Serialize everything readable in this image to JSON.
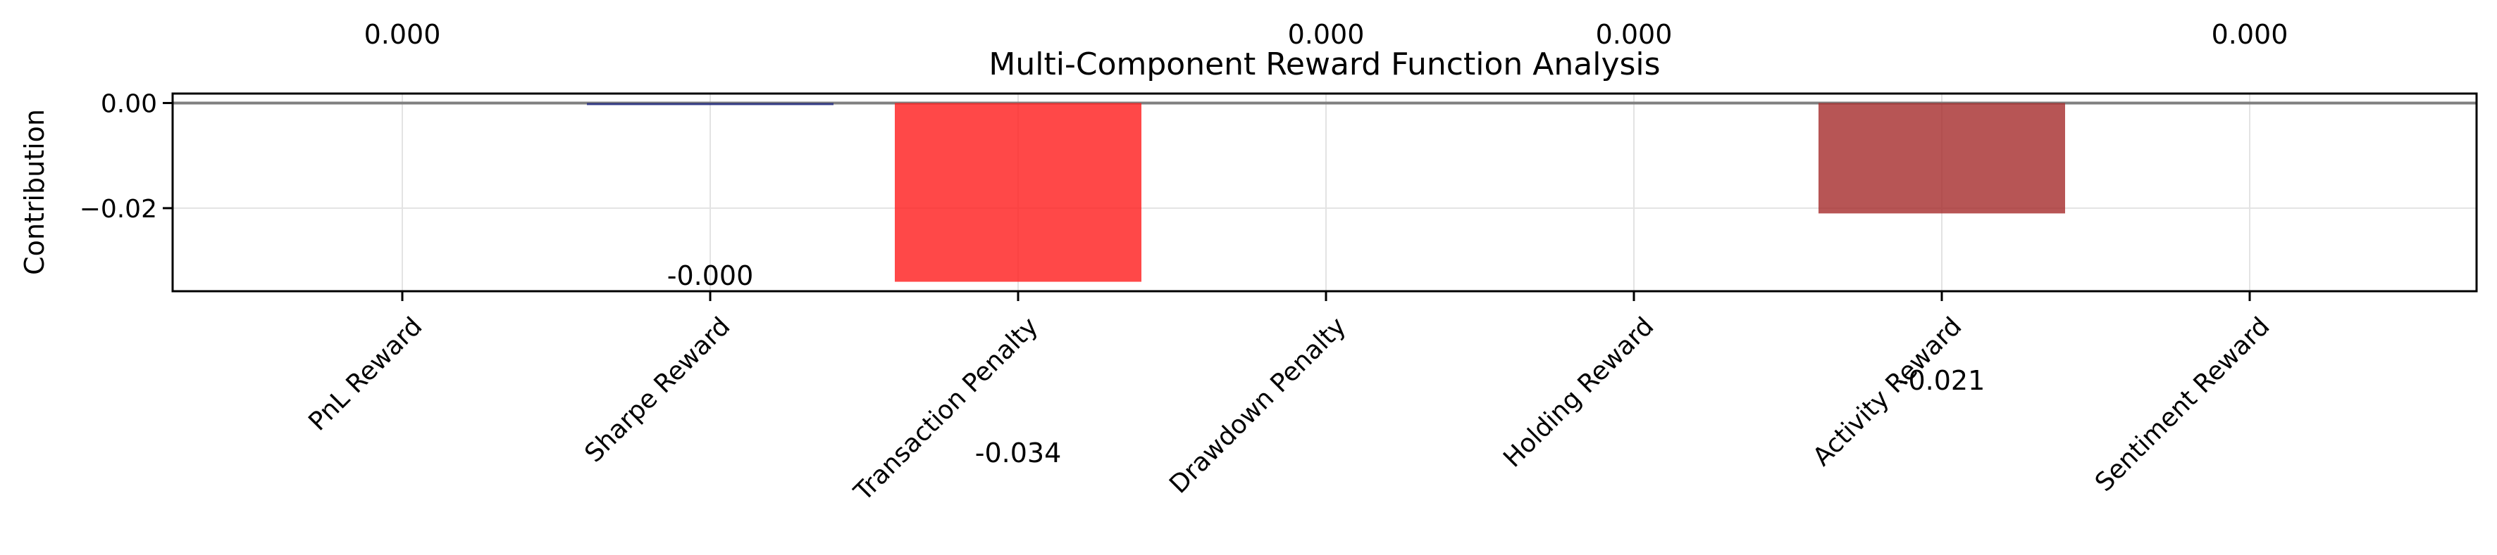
{
  "chart_data": {
    "type": "bar",
    "title": "Multi-Component Reward Function Analysis",
    "xlabel": "",
    "ylabel": "Contribution",
    "categories": [
      "PnL Reward",
      "Sharpe Reward",
      "Transaction Penalty",
      "Drawdown Penalty",
      "Holding Reward",
      "Activity Reward",
      "Sentiment Reward"
    ],
    "values": [
      0.0,
      -0.0003,
      -0.034,
      0.0,
      0.0,
      -0.021,
      0.0
    ],
    "data_labels": [
      "0.000",
      "-0.000",
      "-0.034",
      "0.000",
      "0.000",
      "-0.021",
      "0.000"
    ],
    "colors": [
      "#2ca02c",
      "#1a237e",
      "#ff1a1a",
      "#2ca02c",
      "#2ca02c",
      "#a52a2a",
      "#2ca02c"
    ],
    "ylim": [
      -0.0358,
      0.0018
    ],
    "yticks": [
      0.0,
      -0.02
    ],
    "ytick_labels": [
      "0.00",
      "−0.02"
    ],
    "grid": true,
    "zero_line": true
  }
}
